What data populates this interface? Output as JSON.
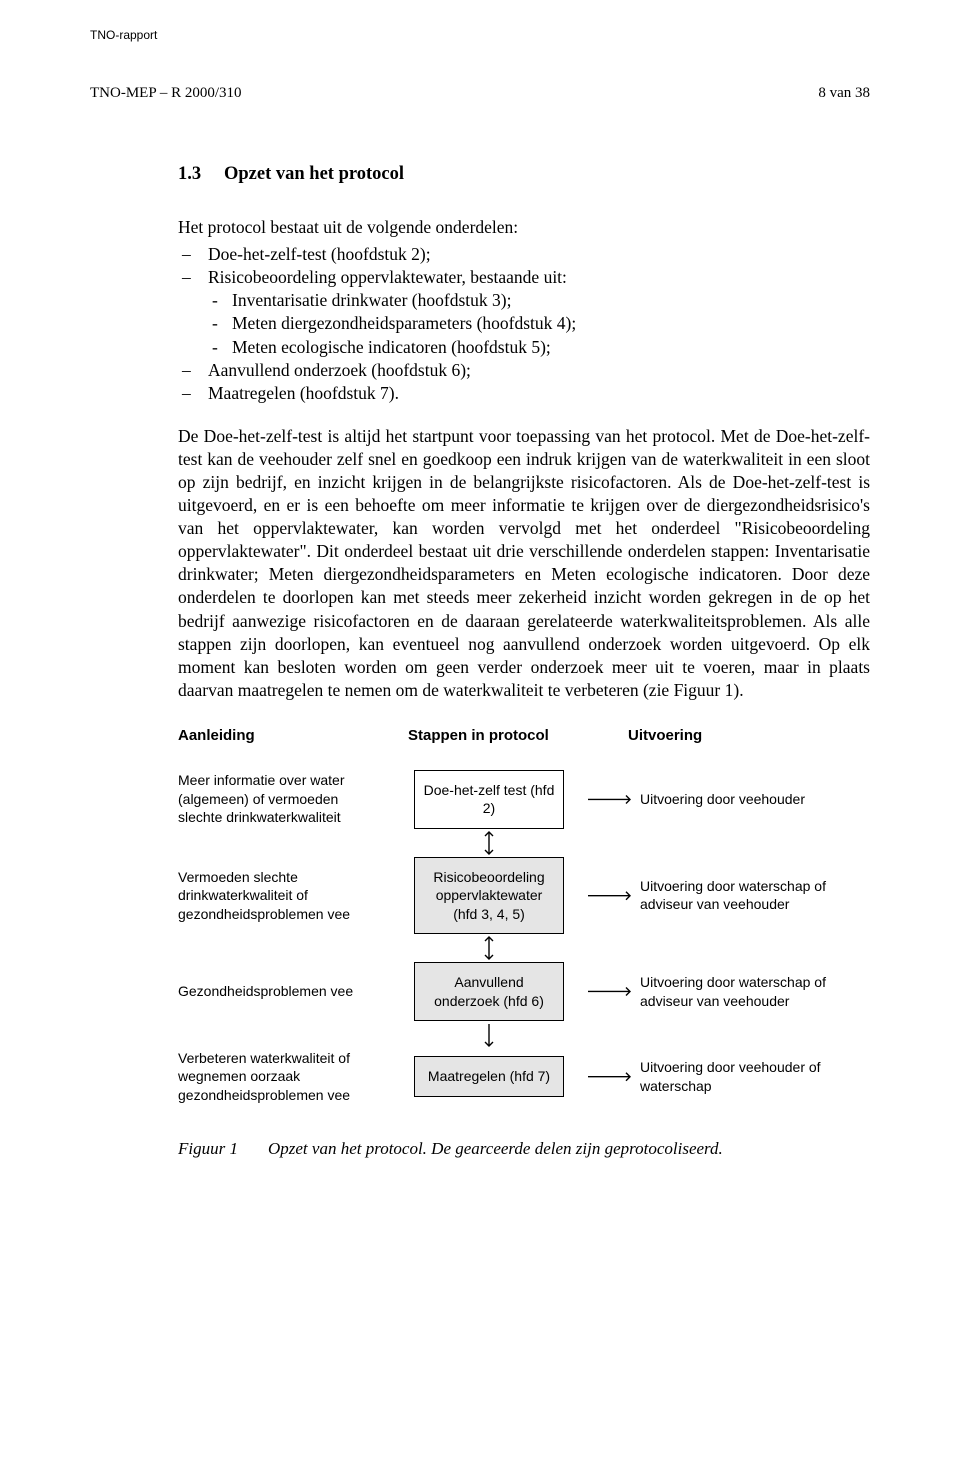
{
  "header": {
    "running": "TNO-rapport",
    "doc_id": "TNO-MEP – R 2000/310",
    "page_no": "8 van 38"
  },
  "section": {
    "number": "1.3",
    "title": "Opzet van het protocol"
  },
  "intro": "Het protocol bestaat uit de volgende onderdelen:",
  "components": {
    "c1": "Doe-het-zelf-test (hoofdstuk 2);",
    "c2": "Risicobeoordeling oppervlaktewater, bestaande uit:",
    "c2a": "Inventarisatie drinkwater (hoofdstuk 3);",
    "c2b": "Meten diergezondheidsparameters (hoofdstuk 4);",
    "c2c": "Meten ecologische indicatoren (hoofdstuk 5);",
    "c3": "Aanvullend onderzoek (hoofdstuk 6);",
    "c4": "Maatregelen (hoofdstuk 7)."
  },
  "paragraph": "De Doe-het-zelf-test is altijd het startpunt voor toepassing van het protocol. Met de Doe-het-zelf-test kan de veehouder zelf snel en goedkoop een indruk krijgen van de waterkwaliteit in een sloot op zijn bedrijf, en inzicht krijgen in de belangrijkste risicofactoren. Als de Doe-het-zelf-test is uitgevoerd, en er is een behoefte om meer informatie te krijgen over de diergezondheidsrisico's van het oppervlaktewater, kan worden vervolgd met het onderdeel \"Risicobeoordeling oppervlaktewater\". Dit onderdeel bestaat uit drie verschillende onderdelen stappen: Inventarisatie drinkwater; Meten diergezondheidsparameters en Meten ecologische indicatoren. Door deze onderdelen te doorlopen kan met steeds meer zekerheid inzicht worden gekregen in de op het bedrijf aanwezige risicofactoren en de daaraan gerelateerde waterkwaliteitsproblemen. Als alle stappen zijn doorlopen, kan eventueel nog aanvullend onderzoek worden uitgevoerd. Op elk moment kan besloten worden om geen verder onderzoek meer uit te voeren, maar in plaats daarvan maatregelen te nemen om de waterkwaliteit te verbeteren (zie Figuur 1).",
  "flow": {
    "type": "flowchart",
    "background_color": "#ffffff",
    "box_border_color": "#000000",
    "shaded_fill": "#e5e5e5",
    "font_family": "Arial",
    "header_fontsize": 15,
    "body_fontsize": 14,
    "headers": {
      "a": "Aanleiding",
      "b": "Stappen in protocol",
      "c": "Uitvoering"
    },
    "rows": [
      {
        "a": "Meer informatie over water (algemeen) of vermoeden slechte drinkwaterkwaliteit",
        "b": "Doe-het-zelf test (hfd 2)",
        "shaded": false,
        "c": "Uitvoering door veehouder"
      },
      {
        "a": "Vermoeden slechte drinkwaterkwaliteit of gezondheids­problemen vee",
        "b": "Risico­beoordeling oppervlaktewater (hfd 3, 4, 5)",
        "shaded": true,
        "c": "Uitvoering door waterschap of adviseur van veehouder"
      },
      {
        "a": "Gezondheids­problemen vee",
        "b": "Aanvullend onderzoek (hfd 6)",
        "shaded": true,
        "c": "Uitvoering door waterschap of adviseur van veehouder"
      },
      {
        "a": "Verbeteren water­kwaliteit of wegnemen oorzaak gezondheids­problemen vee",
        "b": "Maatregelen (hfd 7)",
        "shaded": true,
        "c": "Uitvoering door veehouder of waterschap"
      }
    ],
    "edges": [
      {
        "from": 0,
        "to": 1,
        "dir": "both"
      },
      {
        "from": 1,
        "to": 2,
        "dir": "both"
      },
      {
        "from": 2,
        "to": 3,
        "dir": "down"
      }
    ]
  },
  "caption": {
    "label": "Figuur 1",
    "text": "Opzet van het protocol. De gearceerde delen zijn geprotocoliseerd."
  }
}
